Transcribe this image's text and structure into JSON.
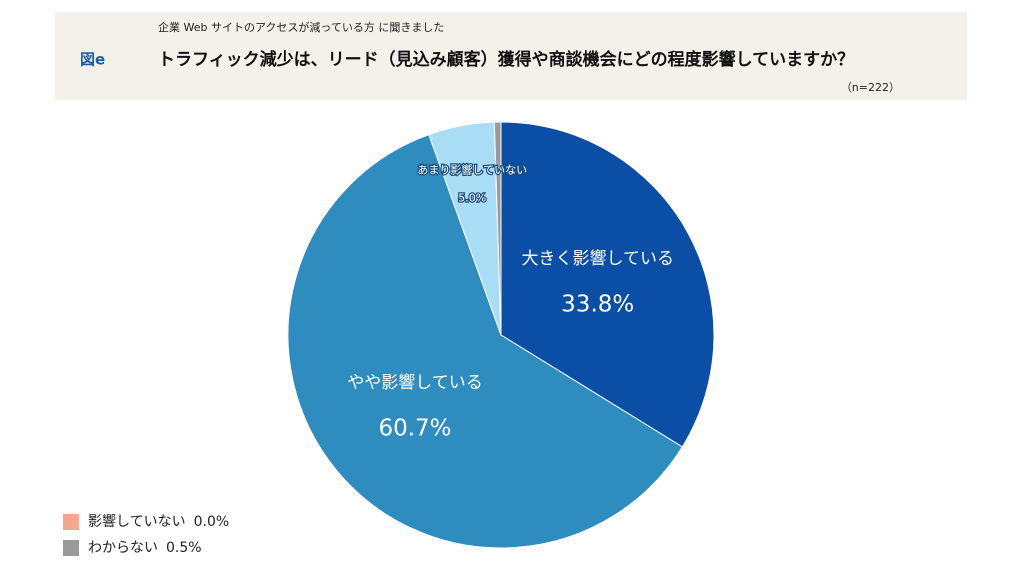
{
  "chart_data": {
    "type": "pie",
    "figure_label": "図e",
    "subtitle": "企業 Web サイトのアクセスが減っている方 に聞きました",
    "title": "トラフィック減少は、リード（見込み顧客）獲得や商談機会にどの程度影響していますか？",
    "note": "（n=222）",
    "categories": [
      "大きく影響している",
      "やや影響している",
      "あまり影響していない",
      "影響していない",
      "わからない"
    ],
    "values": [
      33.8,
      60.7,
      5.0,
      0.0,
      0.5
    ],
    "value_labels": [
      "33.8%",
      "60.7%",
      "5.0%",
      "0.0%",
      "0.5%"
    ],
    "colors": [
      "#0a4ea6",
      "#2f8cbe",
      "#a9dcf5",
      "#f2a98b",
      "#9a9a9a"
    ]
  }
}
